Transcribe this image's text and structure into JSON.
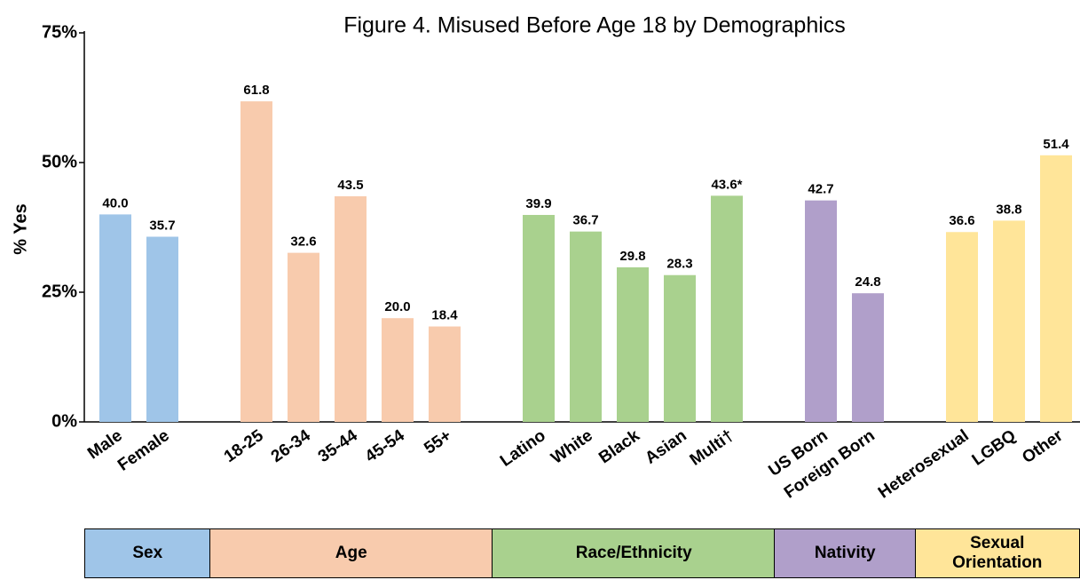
{
  "chart_data": {
    "type": "bar",
    "title": "Figure 4. Misused Before Age 18 by Demographics",
    "y_label": "% Yes",
    "ylim": [
      0,
      75
    ],
    "yticks": [
      {
        "value": 0,
        "label": "0%"
      },
      {
        "value": 25,
        "label": "25%"
      },
      {
        "value": 50,
        "label": "50%"
      },
      {
        "value": 75,
        "label": "75%"
      }
    ],
    "groups": [
      {
        "name": "Sex",
        "color": "#9fc5e8",
        "categories": [
          "Male",
          "Female"
        ],
        "values": [
          40.0,
          35.7
        ],
        "value_labels": [
          "40.0",
          "35.7"
        ]
      },
      {
        "name": "Age",
        "color": "#f8cbad",
        "categories": [
          "18-25",
          "26-34",
          "35-44",
          "45-54",
          "55+"
        ],
        "values": [
          61.8,
          32.6,
          43.5,
          20.0,
          18.4
        ],
        "value_labels": [
          "61.8",
          "32.6",
          "43.5",
          "20.0",
          "18.4"
        ]
      },
      {
        "name": "Race/Ethnicity",
        "color": "#a9d18e",
        "categories": [
          "Latino",
          "White",
          "Black",
          "Asian",
          "Multi†"
        ],
        "values": [
          39.9,
          36.7,
          29.8,
          28.3,
          43.6
        ],
        "value_labels": [
          "39.9",
          "36.7",
          "29.8",
          "28.3",
          "43.6*"
        ]
      },
      {
        "name": "Nativity",
        "color": "#b09fca",
        "categories": [
          "US Born",
          "Foreign Born"
        ],
        "values": [
          42.7,
          24.8
        ],
        "value_labels": [
          "42.7",
          "24.8"
        ]
      },
      {
        "name": "Sexual Orientation",
        "color": "#ffe599",
        "categories": [
          "Heterosexual",
          "LGBQ",
          "Other"
        ],
        "values": [
          36.6,
          38.8,
          51.4
        ],
        "value_labels": [
          "36.6",
          "38.8",
          "51.4"
        ]
      }
    ]
  }
}
